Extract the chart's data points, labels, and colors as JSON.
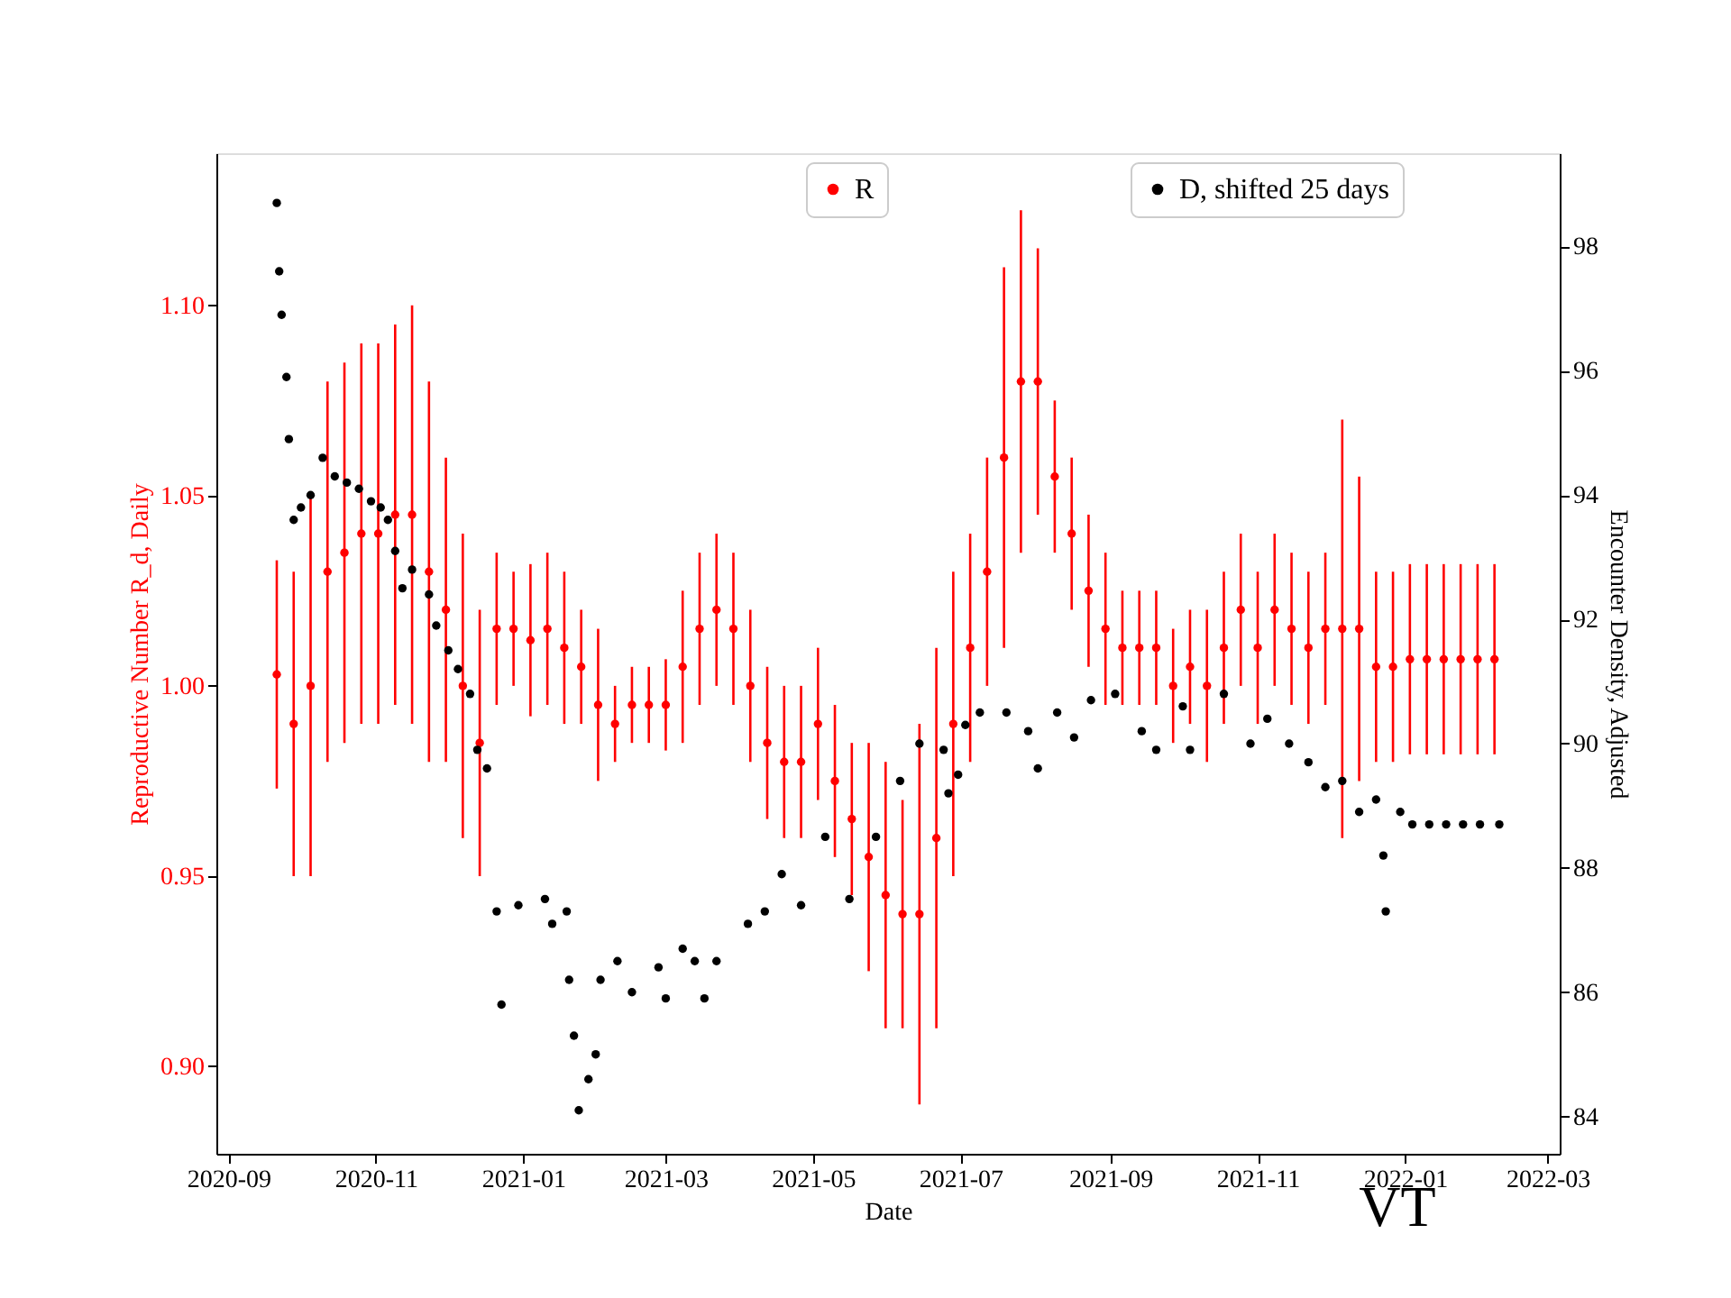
{
  "chart_data": {
    "type": "scatter",
    "xlabel": "Date",
    "ylabel": "Reproductive Number R_d, Daily",
    "y2label": "Encounter Density, Adjusted",
    "xlim": [
      "2020-08-27",
      "2022-03-06"
    ],
    "xticks": [
      "2020-09",
      "2020-11",
      "2021-01",
      "2021-03",
      "2021-05",
      "2021-07",
      "2021-09",
      "2021-11",
      "2022-01",
      "2022-03"
    ],
    "ylim": [
      0.877,
      1.14
    ],
    "yticks": [
      {
        "value": 0.9,
        "label": "0.90"
      },
      {
        "value": 0.95,
        "label": "0.95"
      },
      {
        "value": 1.0,
        "label": "1.00"
      },
      {
        "value": 1.05,
        "label": "1.05"
      },
      {
        "value": 1.1,
        "label": "1.10"
      }
    ],
    "y2lim": [
      83.4,
      99.5
    ],
    "y2ticks": [
      84,
      86,
      88,
      90,
      92,
      94,
      96,
      98
    ],
    "legend": "top",
    "marker": "circle",
    "grid": false,
    "annotations": [
      "VT"
    ],
    "series": [
      {
        "name": "R",
        "color": "#ff0000",
        "x": [
          "2020-09-21",
          "2020-09-28",
          "2020-10-05",
          "2020-10-12",
          "2020-10-19",
          "2020-10-26",
          "2020-11-02",
          "2020-11-09",
          "2020-11-16",
          "2020-11-23",
          "2020-11-30",
          "2020-12-07",
          "2020-12-14",
          "2020-12-21",
          "2020-12-28",
          "2021-01-04",
          "2021-01-11",
          "2021-01-18",
          "2021-01-25",
          "2021-02-01",
          "2021-02-08",
          "2021-02-15",
          "2021-02-22",
          "2021-03-01",
          "2021-03-08",
          "2021-03-15",
          "2021-03-22",
          "2021-03-29",
          "2021-04-05",
          "2021-04-12",
          "2021-04-19",
          "2021-04-26",
          "2021-05-03",
          "2021-05-10",
          "2021-05-17",
          "2021-05-24",
          "2021-05-31",
          "2021-06-07",
          "2021-06-14",
          "2021-06-21",
          "2021-06-28",
          "2021-07-05",
          "2021-07-12",
          "2021-07-19",
          "2021-07-26",
          "2021-08-02",
          "2021-08-09",
          "2021-08-16",
          "2021-08-23",
          "2021-08-30",
          "2021-09-06",
          "2021-09-13",
          "2021-09-20",
          "2021-09-27",
          "2021-10-04",
          "2021-10-11",
          "2021-10-18",
          "2021-10-25",
          "2021-11-01",
          "2021-11-08",
          "2021-11-15",
          "2021-11-22",
          "2021-11-29",
          "2021-12-06",
          "2021-12-13",
          "2021-12-20",
          "2021-12-27",
          "2022-01-03",
          "2022-01-10",
          "2022-01-17",
          "2022-01-24",
          "2022-01-31",
          "2022-02-07"
        ],
        "values": [
          1.003,
          0.99,
          1.0,
          1.03,
          1.035,
          1.04,
          1.04,
          1.045,
          1.045,
          1.03,
          1.02,
          1.0,
          0.985,
          1.015,
          1.015,
          1.012,
          1.015,
          1.01,
          1.005,
          0.995,
          0.99,
          0.995,
          0.995,
          0.995,
          1.005,
          1.015,
          1.02,
          1.015,
          1.0,
          0.985,
          0.98,
          0.98,
          0.99,
          0.975,
          0.965,
          0.955,
          0.945,
          0.94,
          0.94,
          0.96,
          0.99,
          1.01,
          1.03,
          1.06,
          1.08,
          1.08,
          1.055,
          1.04,
          1.025,
          1.015,
          1.01,
          1.01,
          1.01,
          1.0,
          1.005,
          1.0,
          1.01,
          1.02,
          1.01,
          1.02,
          1.015,
          1.01,
          1.015,
          1.015,
          1.015,
          1.005,
          1.005,
          1.007,
          1.007,
          1.007,
          1.007,
          1.007,
          1.007
        ],
        "errors": [
          0.03,
          0.04,
          0.05,
          0.05,
          0.05,
          0.05,
          0.05,
          0.05,
          0.055,
          0.05,
          0.04,
          0.04,
          0.035,
          0.02,
          0.015,
          0.02,
          0.02,
          0.02,
          0.015,
          0.02,
          0.01,
          0.01,
          0.01,
          0.012,
          0.02,
          0.02,
          0.02,
          0.02,
          0.02,
          0.02,
          0.02,
          0.02,
          0.02,
          0.02,
          0.02,
          0.03,
          0.035,
          0.03,
          0.05,
          0.05,
          0.04,
          0.03,
          0.03,
          0.05,
          0.045,
          0.035,
          0.02,
          0.02,
          0.02,
          0.02,
          0.015,
          0.015,
          0.015,
          0.015,
          0.015,
          0.02,
          0.02,
          0.02,
          0.02,
          0.02,
          0.02,
          0.02,
          0.02,
          0.055,
          0.04,
          0.025,
          0.025,
          0.025,
          0.025,
          0.025,
          0.025,
          0.025,
          0.025
        ]
      },
      {
        "name": "D, shifted 25 days",
        "color": "#000000",
        "axis": "y2",
        "x": [
          "2020-09-21",
          "2020-09-22",
          "2020-09-23",
          "2020-09-25",
          "2020-09-26",
          "2020-09-28",
          "2020-10-01",
          "2020-10-05",
          "2020-10-10",
          "2020-10-15",
          "2020-10-20",
          "2020-10-25",
          "2020-10-30",
          "2020-11-03",
          "2020-11-06",
          "2020-11-09",
          "2020-11-12",
          "2020-11-16",
          "2020-11-23",
          "2020-11-26",
          "2020-12-01",
          "2020-12-05",
          "2020-12-10",
          "2020-12-13",
          "2020-12-17",
          "2020-12-21",
          "2020-12-23",
          "2020-12-30",
          "2021-01-10",
          "2021-01-13",
          "2021-01-19",
          "2021-01-20",
          "2021-01-22",
          "2021-01-24",
          "2021-01-28",
          "2021-01-31",
          "2021-02-02",
          "2021-02-09",
          "2021-02-15",
          "2021-02-26",
          "2021-03-01",
          "2021-03-08",
          "2021-03-13",
          "2021-03-17",
          "2021-03-22",
          "2021-04-04",
          "2021-04-11",
          "2021-04-18",
          "2021-04-26",
          "2021-05-06",
          "2021-05-16",
          "2021-05-27",
          "2021-06-06",
          "2021-06-14",
          "2021-06-24",
          "2021-06-26",
          "2021-06-30",
          "2021-07-03",
          "2021-07-09",
          "2021-07-20",
          "2021-07-29",
          "2021-08-02",
          "2021-08-10",
          "2021-08-17",
          "2021-08-24",
          "2021-09-03",
          "2021-09-14",
          "2021-09-20",
          "2021-10-01",
          "2021-10-04",
          "2021-10-18",
          "2021-10-29",
          "2021-11-05",
          "2021-11-14",
          "2021-11-22",
          "2021-11-29",
          "2021-12-06",
          "2021-12-13",
          "2021-12-20",
          "2021-12-23",
          "2021-12-24",
          "2021-12-30",
          "2022-01-04",
          "2022-01-11",
          "2022-01-18",
          "2022-01-25",
          "2022-02-01",
          "2022-02-09"
        ],
        "values": [
          98.7,
          97.6,
          96.9,
          95.9,
          94.9,
          93.6,
          93.8,
          94.0,
          94.6,
          94.3,
          94.2,
          94.1,
          93.9,
          93.8,
          93.6,
          93.1,
          92.5,
          92.8,
          92.4,
          91.9,
          91.5,
          91.2,
          90.8,
          89.9,
          89.6,
          87.3,
          85.8,
          87.4,
          87.5,
          87.1,
          87.3,
          86.2,
          85.3,
          84.1,
          84.6,
          85.0,
          86.2,
          86.5,
          86.0,
          86.4,
          85.9,
          86.7,
          86.5,
          85.9,
          86.5,
          87.1,
          87.3,
          87.9,
          87.4,
          88.5,
          87.5,
          88.5,
          89.4,
          90.0,
          89.9,
          89.2,
          89.5,
          90.3,
          90.5,
          90.5,
          90.2,
          89.6,
          90.5,
          90.1,
          90.7,
          90.8,
          90.2,
          89.9,
          90.6,
          89.9,
          90.8,
          90.0,
          90.4,
          90.0,
          89.7,
          89.3,
          89.4,
          88.9,
          89.1,
          88.2,
          87.3,
          88.9,
          88.7,
          88.7,
          88.7,
          88.7,
          88.7,
          88.7
        ]
      }
    ]
  }
}
